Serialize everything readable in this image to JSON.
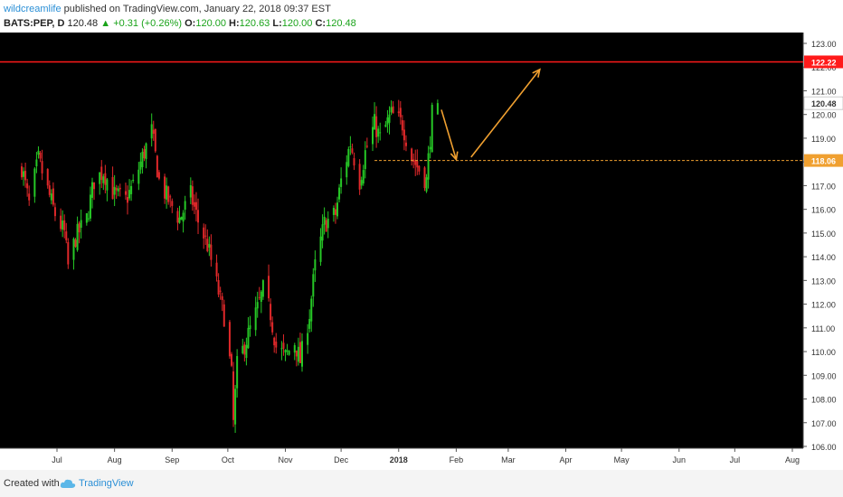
{
  "header": {
    "author": "wildcreamlife",
    "published": "published on TradingView.com, January 22, 2018 09:37 EST"
  },
  "symbol_bar": {
    "symbol": "BATS:PEP, D",
    "last": "120.48",
    "change": "+0.31 (+0.26%)",
    "open_label": "O:",
    "open": "120.00",
    "high_label": "H:",
    "high": "120.63",
    "low_label": "L:",
    "low": "120.00",
    "close_label": "C:",
    "close": "120.48"
  },
  "footer": {
    "created_with": "Created with",
    "brand": "TradingView"
  },
  "colors": {
    "up": "#26c826",
    "down": "#e0282a",
    "background": "#000000",
    "resistance": "#ff1a1a",
    "support": "#f0a030",
    "arrow": "#f0a030"
  },
  "chart_data": {
    "type": "candlestick",
    "symbol": "BATS:PEP",
    "interval": "D",
    "ylim": [
      106,
      123
    ],
    "y_ticks": [
      "106.00",
      "107.00",
      "108.00",
      "109.00",
      "110.00",
      "111.00",
      "112.00",
      "113.00",
      "114.00",
      "115.00",
      "116.00",
      "117.00",
      "118.00",
      "119.00",
      "120.00",
      "121.00",
      "122.00",
      "123.00"
    ],
    "x_ticks": [
      "Jul",
      "Aug",
      "Sep",
      "Oct",
      "Nov",
      "Dec",
      "2018",
      "Feb",
      "Mar",
      "Apr",
      "May",
      "Jun",
      "Jul",
      "Aug"
    ],
    "price_labels": {
      "resistance": "122.22",
      "last": "120.48",
      "support": "118.06"
    },
    "horizontal_lines": [
      {
        "name": "resistance",
        "value": 122.22,
        "style": "solid"
      },
      {
        "name": "support",
        "value": 118.06,
        "style": "dashed"
      }
    ],
    "close_path": [
      {
        "date": "2017-06-12",
        "close": 117.8
      },
      {
        "date": "2017-06-16",
        "close": 116.2
      },
      {
        "date": "2017-06-21",
        "close": 118.1
      },
      {
        "date": "2017-06-26",
        "close": 116.8
      },
      {
        "date": "2017-06-30",
        "close": 115.8
      },
      {
        "date": "2017-07-05",
        "close": 115.0
      },
      {
        "date": "2017-07-07",
        "close": 113.6
      },
      {
        "date": "2017-07-11",
        "close": 114.8
      },
      {
        "date": "2017-07-17",
        "close": 115.6
      },
      {
        "date": "2017-07-21",
        "close": 117.2
      },
      {
        "date": "2017-07-26",
        "close": 117.6
      },
      {
        "date": "2017-08-01",
        "close": 116.6
      },
      {
        "date": "2017-08-07",
        "close": 116.4
      },
      {
        "date": "2017-08-11",
        "close": 117.0
      },
      {
        "date": "2017-08-16",
        "close": 118.2
      },
      {
        "date": "2017-08-21",
        "close": 119.3
      },
      {
        "date": "2017-08-25",
        "close": 117.2
      },
      {
        "date": "2017-08-30",
        "close": 116.4
      },
      {
        "date": "2017-09-05",
        "close": 115.6
      },
      {
        "date": "2017-09-11",
        "close": 116.6
      },
      {
        "date": "2017-09-15",
        "close": 115.5
      },
      {
        "date": "2017-09-20",
        "close": 114.5
      },
      {
        "date": "2017-09-26",
        "close": 112.5
      },
      {
        "date": "2017-09-29",
        "close": 111.5
      },
      {
        "date": "2017-10-03",
        "close": 109.0
      },
      {
        "date": "2017-10-04",
        "close": 107.0
      },
      {
        "date": "2017-10-06",
        "close": 109.4
      },
      {
        "date": "2017-10-11",
        "close": 110.5
      },
      {
        "date": "2017-10-17",
        "close": 111.8
      },
      {
        "date": "2017-10-20",
        "close": 112.6
      },
      {
        "date": "2017-10-24",
        "close": 111.6
      },
      {
        "date": "2017-10-27",
        "close": 110.2
      },
      {
        "date": "2017-11-01",
        "close": 109.8
      },
      {
        "date": "2017-11-06",
        "close": 110.4
      },
      {
        "date": "2017-11-09",
        "close": 109.6
      },
      {
        "date": "2017-11-14",
        "close": 111.6
      },
      {
        "date": "2017-11-17",
        "close": 113.6
      },
      {
        "date": "2017-11-22",
        "close": 115.4
      },
      {
        "date": "2017-11-28",
        "close": 115.8
      },
      {
        "date": "2017-12-01",
        "close": 117.2
      },
      {
        "date": "2017-12-06",
        "close": 118.8
      },
      {
        "date": "2017-12-11",
        "close": 117.2
      },
      {
        "date": "2017-12-14",
        "close": 118.4
      },
      {
        "date": "2017-12-19",
        "close": 119.6
      },
      {
        "date": "2017-12-22",
        "close": 119.0
      },
      {
        "date": "2017-12-28",
        "close": 120.0
      },
      {
        "date": "2018-01-03",
        "close": 119.6
      },
      {
        "date": "2018-01-08",
        "close": 118.2
      },
      {
        "date": "2018-01-11",
        "close": 117.8
      },
      {
        "date": "2018-01-16",
        "close": 117.2
      },
      {
        "date": "2018-01-19",
        "close": 120.0
      },
      {
        "date": "2018-01-22",
        "close": 120.48
      }
    ],
    "annotations": [
      {
        "type": "arrow",
        "from": {
          "date": "2018-01-24",
          "price": 120.2
        },
        "to": {
          "date": "2018-02-01",
          "price": 118.1
        }
      },
      {
        "type": "arrow",
        "from": {
          "date": "2018-02-09",
          "price": 118.2
        },
        "to": {
          "date": "2018-03-18",
          "price": 121.9
        }
      }
    ]
  }
}
